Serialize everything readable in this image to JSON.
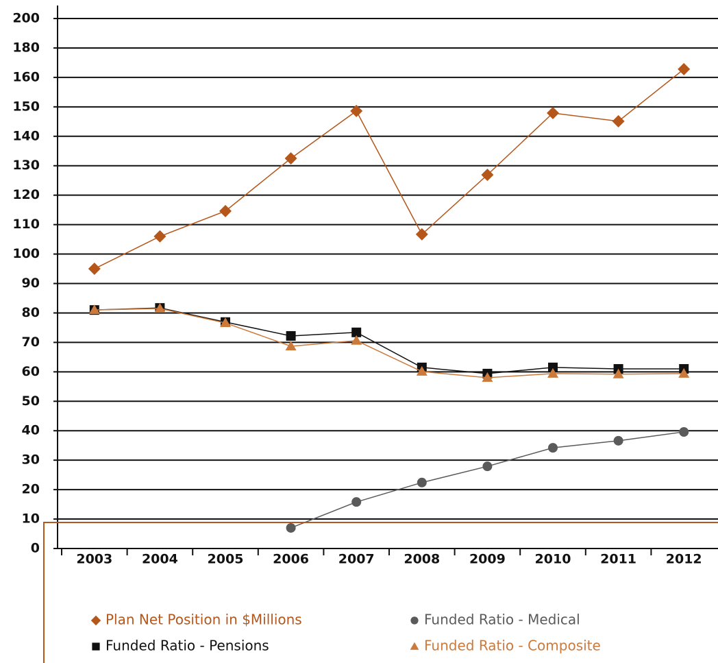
{
  "chart_data": {
    "type": "line",
    "categories": [
      "2003",
      "2004",
      "2005",
      "2006",
      "2007",
      "2008",
      "2009",
      "2010",
      "2011",
      "2012"
    ],
    "series": [
      {
        "name": "Plan Net Position in $Millions",
        "color": "#b5561a",
        "marker": "diamond",
        "values": [
          95,
          106,
          114.6,
          132.5,
          148.6,
          106.7,
          126.9,
          147.9,
          145.1,
          165.6
        ]
      },
      {
        "name": "Funded Ratio - Medical",
        "color": "#5a5a5a",
        "marker": "circle",
        "values": [
          null,
          null,
          null,
          7,
          15.8,
          22.4,
          27.9,
          34.2,
          36.6,
          39.6
        ]
      },
      {
        "name": "Funded Ratio - Pensions",
        "color": "#111111",
        "marker": "square",
        "values": [
          81,
          81.7,
          76.9,
          72.2,
          73.4,
          61.5,
          59.4,
          61.5,
          61,
          61
        ]
      },
      {
        "name": "Funded Ratio - Composite",
        "color": "#cc7a3c",
        "marker": "triangle",
        "values": [
          81,
          81.5,
          76.6,
          68.7,
          70.6,
          60.1,
          58,
          59.4,
          59.2,
          59.4
        ]
      }
    ],
    "ylim": [
      0,
      200
    ],
    "yticks": [
      0,
      10,
      20,
      30,
      40,
      50,
      60,
      70,
      80,
      90,
      100,
      110,
      120,
      130,
      140,
      150,
      160,
      180,
      200
    ],
    "grid": true
  }
}
